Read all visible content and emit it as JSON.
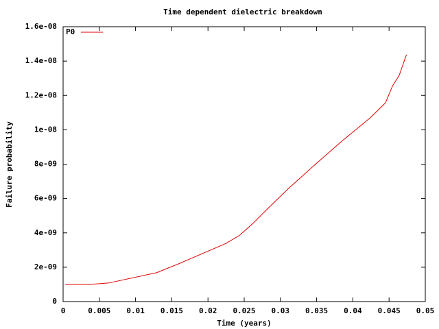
{
  "chart_data": {
    "type": "line",
    "title": "Time dependent dielectric breakdown",
    "xlabel": "Time (years)",
    "ylabel": "Failure probability",
    "x": [
      0.0003,
      0.0036,
      0.00625,
      0.0129,
      0.0159,
      0.0225,
      0.0244,
      0.0263,
      0.0282,
      0.0311,
      0.0348,
      0.0386,
      0.0424,
      0.0445,
      0.0455,
      0.0464,
      0.0474
    ],
    "series": [
      {
        "name": "P0",
        "color": "#e00000",
        "values": [
          1e-09,
          1e-09,
          1.08e-09,
          1.68e-09,
          2.19e-09,
          3.39e-09,
          3.87e-09,
          4.59e-09,
          5.39e-09,
          6.58e-09,
          7.98e-09,
          9.38e-09,
          1.07e-08,
          1.157e-08,
          1.257e-08,
          1.317e-08,
          1.437e-08
        ]
      }
    ],
    "xlim": [
      0,
      0.05
    ],
    "xticks": [
      0,
      0.005,
      0.01,
      0.015,
      0.02,
      0.025,
      0.03,
      0.035,
      0.04,
      0.045,
      0.05
    ],
    "ylim": [
      0,
      1.6e-08
    ],
    "yticks": [
      0,
      {
        "value": 2e-09,
        "label": "2e-09"
      },
      {
        "value": 4e-09,
        "label": "4e-09"
      },
      {
        "value": 6e-09,
        "label": "6e-09"
      },
      {
        "value": 8e-09,
        "label": "8e-09"
      },
      {
        "value": 1e-08,
        "label": "1e-08"
      },
      {
        "value": 1.2e-08,
        "label": "1.2e-08"
      },
      {
        "value": 1.4e-08,
        "label": "1.4e-08"
      },
      {
        "value": 1.6e-08,
        "label": "1.6e-08"
      }
    ],
    "legend": "top-left"
  }
}
